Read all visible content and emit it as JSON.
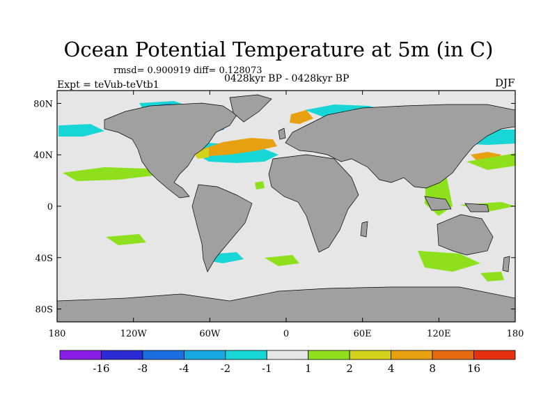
{
  "title": "Ocean Potential Temperature at 5m (in C)",
  "stats": "rmsd= 0.900919  diff= 0.128073",
  "period": "0428kyr BP - 0428kyr BP",
  "expt": "Expt = teVub-teVtb1",
  "season": "DJF",
  "lat_labels": [
    "80N",
    "40N",
    "0",
    "40S",
    "80S"
  ],
  "lon_labels": [
    "180",
    "120W",
    "60W",
    "0",
    "60E",
    "120E",
    "180"
  ],
  "colorbar": {
    "labels": [
      "-16",
      "-8",
      "-4",
      "-2",
      "-1",
      "1",
      "2",
      "4",
      "8",
      "16"
    ],
    "colors": [
      "#8a1ee6",
      "#2b2bd6",
      "#1c6fe0",
      "#17a8e0",
      "#18d6d6",
      "#e6e6e6",
      "#8ee01c",
      "#d2d21a",
      "#e6a010",
      "#e66a10",
      "#e63010"
    ]
  },
  "colors": {
    "land": "#a0a0a0",
    "ocean": "#e6e6e6"
  },
  "chart_data": {
    "type": "heatmap",
    "xlim": [
      -180,
      180
    ],
    "ylim": [
      -90,
      90
    ],
    "levels": [
      -16,
      -8,
      -4,
      -2,
      -1,
      1,
      2,
      4,
      8,
      16
    ]
  }
}
